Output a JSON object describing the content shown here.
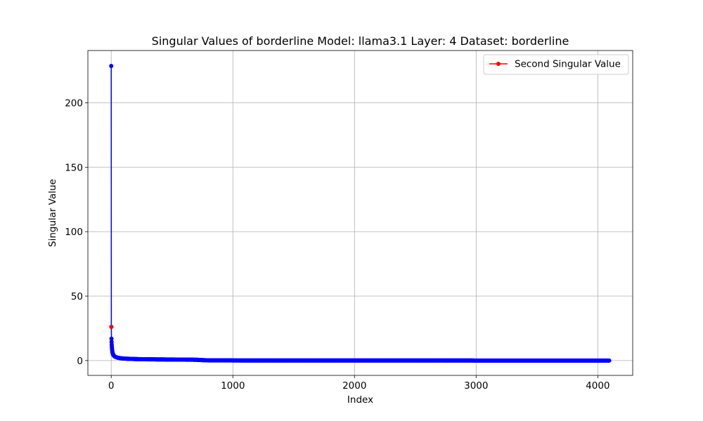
{
  "chart_data": {
    "type": "line",
    "title": "Singular Values of borderline Model: llama3.1 Layer: 4 Dataset: borderline",
    "xlabel": "Index",
    "ylabel": "Singular Value",
    "xlim": [
      -192,
      4287
    ],
    "ylim": [
      -11.5,
      240.5
    ],
    "x_ticks": [
      0,
      1000,
      2000,
      3000,
      4000
    ],
    "y_ticks": [
      0,
      50,
      100,
      150,
      200
    ],
    "grid": true,
    "legend_position": "top-right",
    "series": [
      {
        "color": "#0000ff",
        "marker": "circle",
        "points": [
          [
            0,
            228.5
          ],
          [
            1,
            26.1
          ],
          [
            2,
            17.0
          ],
          [
            3,
            14.5
          ],
          [
            4,
            12.5
          ],
          [
            5,
            11.0
          ],
          [
            6,
            9.8
          ],
          [
            7,
            8.8
          ],
          [
            8,
            7.9
          ],
          [
            9,
            7.2
          ],
          [
            10,
            6.6
          ],
          [
            12,
            5.7
          ],
          [
            15,
            4.8
          ],
          [
            20,
            4.0
          ],
          [
            25,
            3.5
          ],
          [
            30,
            3.1
          ],
          [
            40,
            2.6
          ],
          [
            50,
            2.3
          ],
          [
            60,
            2.1
          ],
          [
            80,
            1.8
          ],
          [
            100,
            1.6
          ],
          [
            130,
            1.4
          ],
          [
            160,
            1.3
          ],
          [
            200,
            1.15
          ],
          [
            250,
            1.05
          ],
          [
            300,
            0.98
          ],
          [
            400,
            0.88
          ],
          [
            500,
            0.8
          ],
          [
            600,
            0.72
          ],
          [
            700,
            0.62
          ],
          [
            750,
            0.35
          ],
          [
            800,
            0.15
          ],
          [
            1000,
            0.1
          ],
          [
            1500,
            0.07
          ],
          [
            2000,
            0.05
          ],
          [
            2500,
            0.04
          ],
          [
            3000,
            0.03
          ],
          [
            3500,
            0.02
          ],
          [
            4000,
            0.01
          ],
          [
            4095,
            0.0
          ]
        ]
      },
      {
        "name": "Second Singular Value",
        "color": "#ff0000",
        "marker": "circle",
        "points": [
          [
            1,
            26.1
          ]
        ]
      }
    ]
  }
}
